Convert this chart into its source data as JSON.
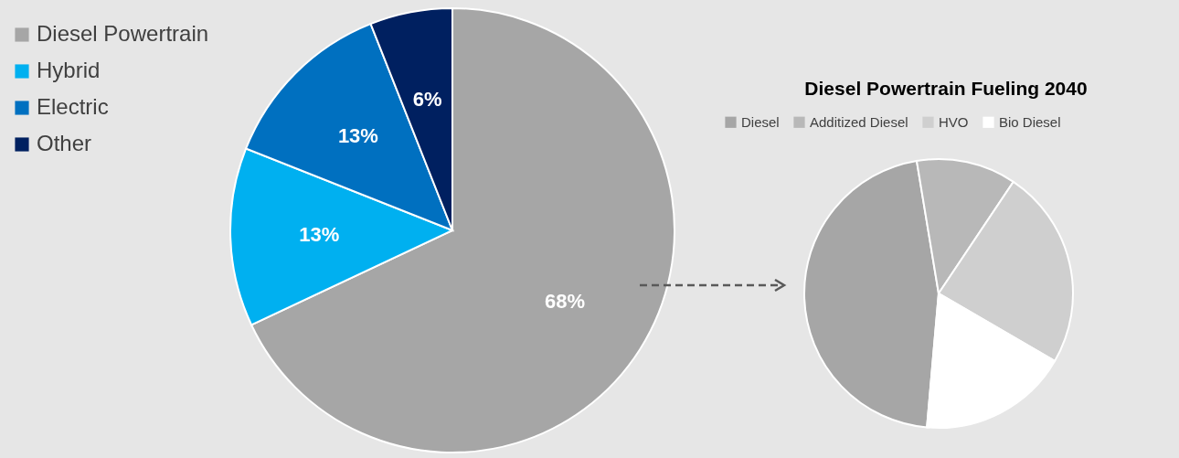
{
  "chart_data": [
    {
      "type": "pie",
      "categories": [
        "Diesel Powertrain",
        "Hybrid",
        "Electric",
        "Other"
      ],
      "values": [
        68,
        13,
        13,
        6
      ],
      "colors": [
        "#a6a6a6",
        "#00b0f0",
        "#0070c0",
        "#002060"
      ],
      "value_labels": [
        "68%",
        "13%",
        "13%",
        "6%"
      ],
      "legend": "top left"
    },
    {
      "type": "pie",
      "title": "Diesel Powertrain Fueling 2040",
      "categories": [
        "Diesel",
        "Additized Diesel",
        "HVO",
        "Bio Diesel"
      ],
      "values": [
        46,
        12,
        24,
        18
      ],
      "colors": [
        "#a6a6a6",
        "#b8b8b8",
        "#cfcfcf",
        "#ffffff"
      ],
      "legend": "top"
    }
  ]
}
